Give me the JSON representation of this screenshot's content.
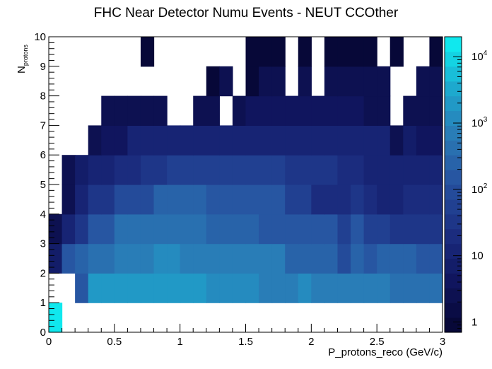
{
  "chart_data": {
    "type": "heatmap",
    "title": "FHC Near Detector Numu Events - NEUT CCOther",
    "xlabel": "P_protons_reco (GeV/c)",
    "ylabel": "N",
    "ylabel_subscript": "protons",
    "xlim": [
      0,
      3
    ],
    "ylim": [
      0,
      10
    ],
    "x_bin_width": 0.1,
    "y_bin_width": 1,
    "x_ticks": [
      "0",
      "0.5",
      "1",
      "1.5",
      "2",
      "2.5",
      "3"
    ],
    "y_ticks": [
      "0",
      "1",
      "2",
      "3",
      "4",
      "5",
      "6",
      "7",
      "8",
      "9",
      "10"
    ],
    "z_scale": "log",
    "zlim": [
      0.7,
      20000
    ],
    "z_ticks": [
      {
        "base": "1",
        "exp": ""
      },
      {
        "base": "10",
        "exp": ""
      },
      {
        "base": "10",
        "exp": "2"
      },
      {
        "base": "10",
        "exp": "3"
      },
      {
        "base": "10",
        "exp": "4"
      }
    ],
    "z_tick_values": [
      1,
      10,
      100,
      1000,
      10000
    ],
    "colorscale": [
      "#070838",
      "#101660",
      "#1c2f82",
      "#26509e",
      "#2a78b5",
      "#1ea5cc",
      "#10e8ee"
    ],
    "z_rows": [
      [
        18000,
        0,
        0,
        0,
        0,
        0,
        0,
        0,
        0,
        0,
        0,
        0,
        0,
        0,
        0,
        0,
        0,
        0,
        0,
        0,
        0,
        0,
        0,
        0,
        0,
        0,
        0,
        0,
        0,
        0
      ],
      [
        0,
        0,
        120,
        1700,
        1700,
        1700,
        1700,
        1700,
        1700,
        1700,
        1700,
        1700,
        1200,
        1200,
        1000,
        1000,
        700,
        700,
        700,
        1200,
        700,
        700,
        700,
        700,
        700,
        700,
        500,
        500,
        500,
        500
      ],
      [
        8,
        150,
        300,
        400,
        400,
        600,
        600,
        800,
        1000,
        1000,
        800,
        800,
        800,
        800,
        800,
        800,
        800,
        600,
        300,
        300,
        300,
        300,
        80,
        300,
        120,
        300,
        200,
        200,
        120,
        120
      ],
      [
        2,
        10,
        40,
        150,
        150,
        400,
        400,
        400,
        400,
        400,
        400,
        400,
        200,
        200,
        200,
        200,
        150,
        150,
        150,
        150,
        120,
        120,
        50,
        120,
        50,
        50,
        30,
        30,
        30,
        30
      ],
      [
        0,
        3,
        12,
        30,
        30,
        80,
        80,
        80,
        200,
        200,
        200,
        200,
        120,
        120,
        120,
        120,
        120,
        120,
        60,
        60,
        20,
        20,
        20,
        40,
        20,
        15,
        15,
        20,
        20,
        20
      ],
      [
        0,
        3,
        8,
        15,
        15,
        20,
        20,
        30,
        30,
        60,
        60,
        60,
        60,
        60,
        60,
        60,
        60,
        60,
        30,
        30,
        30,
        30,
        20,
        20,
        15,
        15,
        15,
        15,
        12,
        10
      ],
      [
        0,
        0,
        0,
        3,
        5,
        5,
        10,
        10,
        10,
        10,
        10,
        15,
        15,
        15,
        15,
        15,
        15,
        15,
        12,
        12,
        12,
        10,
        10,
        10,
        10,
        10,
        3,
        8,
        5,
        5
      ],
      [
        0,
        0,
        0,
        0,
        2,
        3,
        3,
        3,
        3,
        0,
        0,
        2,
        3,
        0,
        3,
        5,
        5,
        5,
        5,
        5,
        5,
        5,
        5,
        5,
        3,
        3,
        0,
        3,
        3,
        3
      ],
      [
        0,
        0,
        0,
        0,
        0,
        0,
        0,
        0,
        0,
        0,
        0,
        0,
        1,
        2,
        0,
        1,
        2,
        2,
        0,
        2,
        0,
        2,
        3,
        3,
        3,
        3,
        0,
        0,
        2,
        2
      ],
      [
        0,
        0,
        0,
        0,
        0,
        0,
        0,
        1,
        0,
        0,
        0,
        0,
        0,
        0,
        0,
        1,
        1,
        1,
        0,
        1,
        0,
        1,
        1,
        1,
        1,
        0,
        1,
        0,
        0,
        1
      ]
    ]
  }
}
